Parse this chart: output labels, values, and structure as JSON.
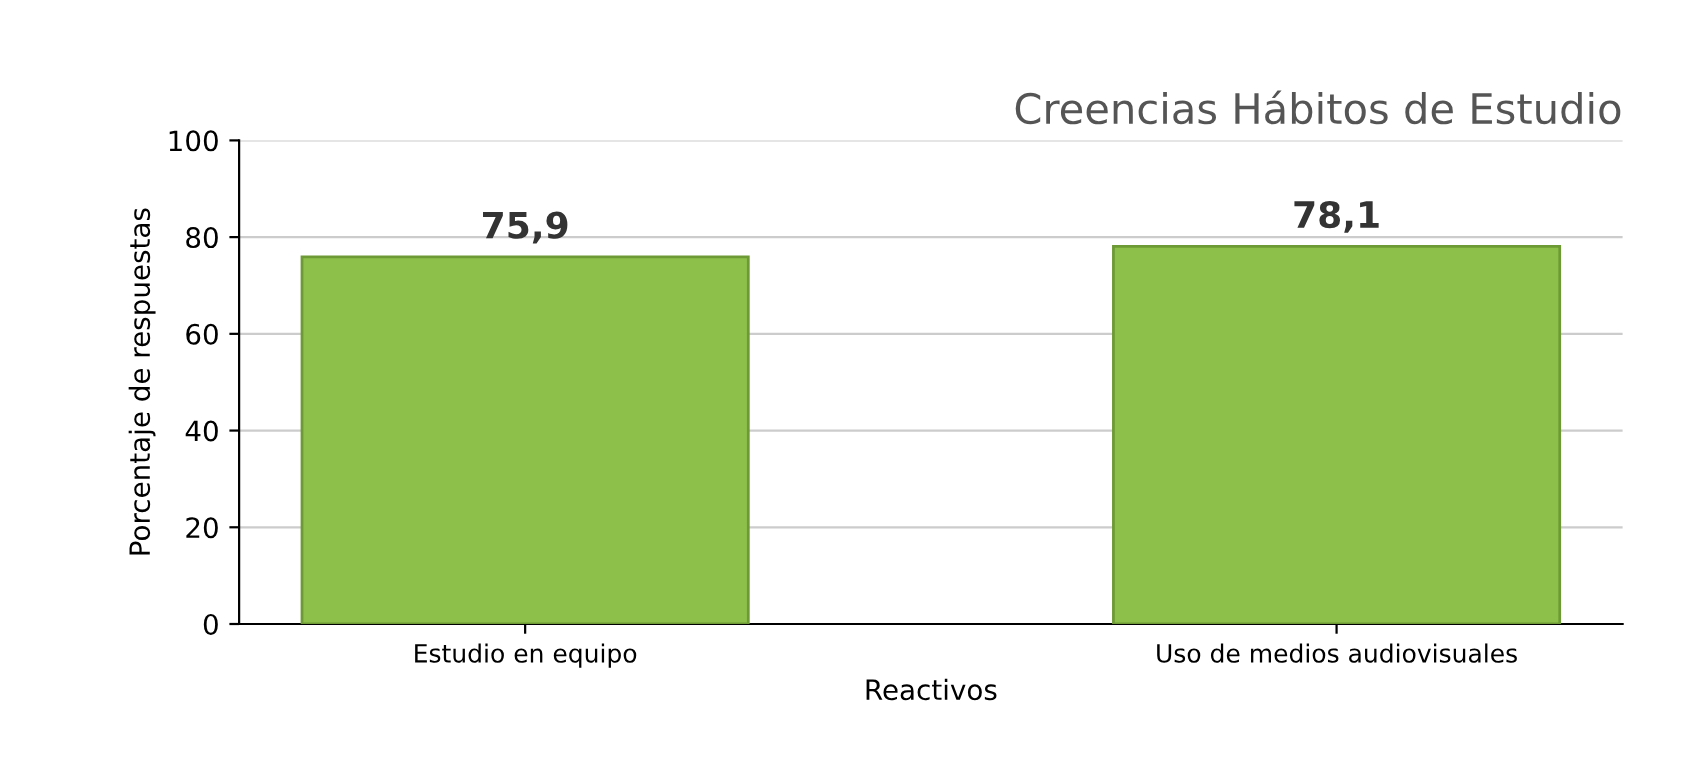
{
  "chart_data": {
    "type": "bar",
    "title": "Creencias Hábitos de Estudio",
    "xlabel": "Reactivos",
    "ylabel": "Porcentaje de respuestas",
    "categories": [
      "Estudio en equipo",
      "Uso de medios audiovisuales"
    ],
    "values": [
      75.9,
      78.1
    ],
    "value_labels": [
      "75,9",
      "78,1"
    ],
    "color": "#8dc04b",
    "ylim": [
      0,
      100
    ],
    "yticks": [
      0,
      20,
      40,
      60,
      80,
      100
    ],
    "grid": "y"
  }
}
